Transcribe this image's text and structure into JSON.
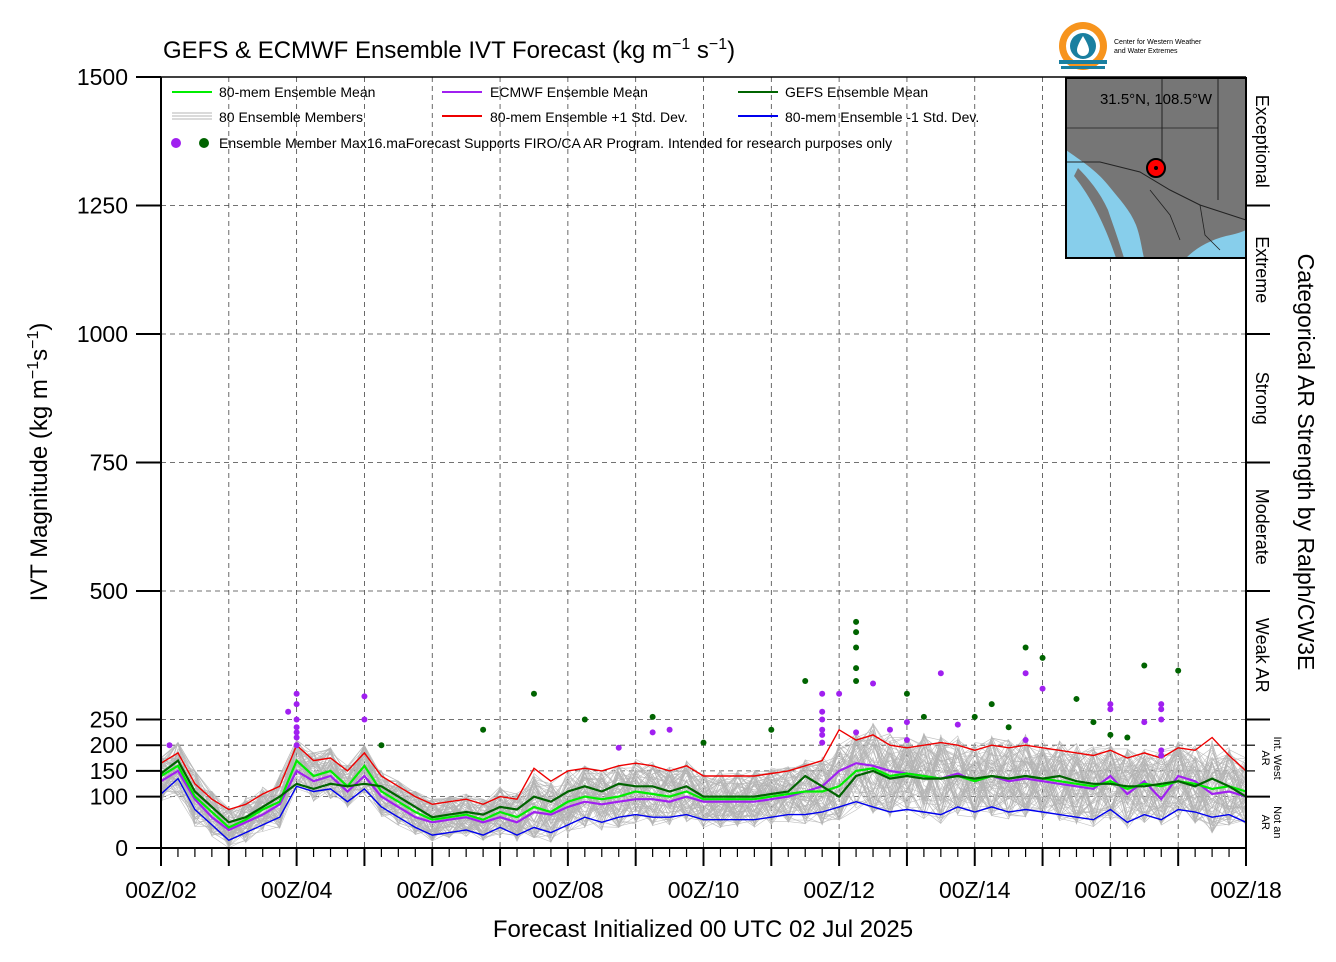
{
  "title_main": "GEFS & ECMWF Ensemble IVT Forecast (kg m",
  "title_exp1": "−1",
  "title_mid": " s",
  "title_exp2": "−1",
  "title_end": ")",
  "logo": {
    "line1": "Center for Western Weather",
    "line2": "and Water Extremes"
  },
  "inset": {
    "location": "31.5°N, 108.5°W"
  },
  "notice": "Forecast Supports FIRO/CA AR Program. Intended for research purposes only",
  "chart_data": {
    "type": "line",
    "xlabel": "Forecast Initialized 00 UTC 02 Jul 2025",
    "ylabel_main": "IVT Magnitude (kg m",
    "ylabel_exp1": "−1",
    "ylabel_mid": "s",
    "ylabel_exp2": "−1",
    "ylabel_end": ")",
    "right_label": "Categorical AR Strength by Ralph/CW3E",
    "xlim": [
      0,
      384
    ],
    "ylim": [
      0,
      1500
    ],
    "x_unit": "forecast hour",
    "x_ticks": [
      {
        "hour": 0,
        "label": "00Z/02"
      },
      {
        "hour": 48,
        "label": "00Z/04"
      },
      {
        "hour": 96,
        "label": "00Z/06"
      },
      {
        "hour": 144,
        "label": "00Z/08"
      },
      {
        "hour": 192,
        "label": "00Z/10"
      },
      {
        "hour": 240,
        "label": "00Z/12"
      },
      {
        "hour": 288,
        "label": "00Z/14"
      },
      {
        "hour": 336,
        "label": "00Z/16"
      },
      {
        "hour": 384,
        "label": "00Z/18"
      }
    ],
    "y_ticks": [
      0,
      100,
      150,
      200,
      250,
      500,
      750,
      1000,
      1250,
      1500
    ],
    "categories": [
      {
        "label": "Not an AR",
        "from": 0,
        "to": 100
      },
      {
        "label": "Int. West AR",
        "from": 100,
        "to": 250
      },
      {
        "label": "Weak AR",
        "from": 250,
        "to": 500
      },
      {
        "label": "Moderate",
        "from": 500,
        "to": 750
      },
      {
        "label": "Strong",
        "from": 750,
        "to": 1000
      },
      {
        "label": "Extreme",
        "from": 1000,
        "to": 1250
      },
      {
        "label": "Exceptional",
        "from": 1250,
        "to": 1500
      }
    ],
    "grid": true,
    "legend_position": "top-left",
    "legend": {
      "mean": "80-mem Ensemble Mean",
      "members": "80 Ensemble Members",
      "max": "Ensemble Member Max16.ma",
      "ecmwf": "ECMWF Ensemble Mean",
      "plus": "80-mem Ensemble +1 Std. Dev.",
      "gefs": "GEFS Ensemble Mean",
      "minus": "80-mem Ensemble -1 Std. Dev."
    },
    "colors": {
      "mean": "#00ee00",
      "ecmwf": "#a020f0",
      "gefs": "#006400",
      "plus": "#ee0000",
      "minus": "#0000ee",
      "members": "#b4b4b4",
      "ecmwf_max": "#a020f0",
      "gefs_max": "#006400"
    },
    "x": [
      0,
      6,
      12,
      18,
      24,
      30,
      36,
      42,
      48,
      54,
      60,
      66,
      72,
      78,
      84,
      90,
      96,
      102,
      108,
      114,
      120,
      126,
      132,
      138,
      144,
      150,
      156,
      162,
      168,
      174,
      180,
      186,
      192,
      198,
      204,
      210,
      216,
      222,
      228,
      234,
      240,
      246,
      252,
      258,
      264,
      270,
      276,
      282,
      288,
      294,
      300,
      306,
      312,
      318,
      324,
      330,
      336,
      342,
      348,
      354,
      360,
      366,
      372,
      378,
      384
    ],
    "series": [
      {
        "name": "80-mem Ensemble Mean",
        "key": "mean",
        "values": [
          140,
          160,
          100,
          70,
          40,
          55,
          75,
          90,
          170,
          140,
          150,
          120,
          160,
          110,
          90,
          70,
          55,
          60,
          65,
          55,
          70,
          60,
          80,
          70,
          90,
          100,
          95,
          100,
          110,
          105,
          100,
          110,
          95,
          95,
          95,
          95,
          100,
          105,
          110,
          110,
          120,
          150,
          155,
          140,
          145,
          140,
          135,
          140,
          130,
          140,
          135,
          140,
          135,
          130,
          125,
          120,
          130,
          115,
          125,
          120,
          130,
          125,
          115,
          120,
          110
        ]
      },
      {
        "name": "ECMWF Ensemble Mean",
        "key": "ecmwf",
        "values": [
          130,
          150,
          95,
          60,
          35,
          50,
          65,
          85,
          150,
          130,
          140,
          110,
          140,
          100,
          80,
          60,
          50,
          55,
          60,
          50,
          60,
          50,
          70,
          65,
          80,
          90,
          85,
          90,
          95,
          95,
          90,
          100,
          90,
          90,
          90,
          90,
          95,
          100,
          110,
          120,
          150,
          165,
          160,
          150,
          145,
          140,
          135,
          145,
          130,
          140,
          130,
          135,
          130,
          125,
          120,
          115,
          140,
          105,
          130,
          95,
          140,
          130,
          105,
          110,
          100
        ]
      },
      {
        "name": "GEFS Ensemble Mean",
        "key": "gefs",
        "values": [
          145,
          170,
          110,
          80,
          50,
          60,
          80,
          100,
          125,
          115,
          125,
          120,
          125,
          120,
          100,
          80,
          60,
          65,
          70,
          65,
          80,
          75,
          100,
          90,
          110,
          120,
          110,
          125,
          120,
          120,
          110,
          120,
          100,
          100,
          100,
          100,
          105,
          110,
          140,
          120,
          100,
          140,
          150,
          135,
          140,
          135,
          135,
          140,
          135,
          140,
          135,
          140,
          135,
          140,
          130,
          125,
          125,
          120,
          120,
          125,
          130,
          120,
          135,
          120,
          100
        ]
      },
      {
        "name": "80-mem Ensemble +1 Std. Dev.",
        "key": "plus",
        "values": [
          165,
          185,
          125,
          95,
          75,
          85,
          105,
          120,
          200,
          170,
          175,
          150,
          185,
          140,
          120,
          100,
          85,
          90,
          95,
          85,
          100,
          95,
          155,
          130,
          150,
          155,
          150,
          160,
          165,
          160,
          150,
          160,
          140,
          140,
          140,
          140,
          145,
          150,
          160,
          170,
          230,
          210,
          220,
          200,
          195,
          200,
          205,
          200,
          190,
          200,
          195,
          200,
          195,
          190,
          185,
          180,
          190,
          175,
          185,
          175,
          195,
          190,
          215,
          180,
          150
        ]
      },
      {
        "name": "80-mem Ensemble -1 Std. Dev.",
        "key": "minus",
        "values": [
          105,
          135,
          75,
          45,
          15,
          30,
          45,
          60,
          120,
          110,
          115,
          90,
          115,
          80,
          60,
          40,
          25,
          30,
          35,
          25,
          40,
          25,
          40,
          30,
          45,
          60,
          50,
          60,
          65,
          60,
          60,
          65,
          55,
          55,
          55,
          55,
          60,
          65,
          65,
          70,
          80,
          90,
          80,
          70,
          75,
          70,
          65,
          80,
          70,
          80,
          70,
          75,
          70,
          65,
          60,
          55,
          75,
          50,
          65,
          55,
          75,
          70,
          60,
          65,
          50
        ]
      }
    ],
    "members_count": 80,
    "members_band_approx": [
      [
        55,
        175
      ],
      [
        70,
        205
      ],
      [
        20,
        150
      ],
      [
        5,
        110
      ],
      [
        0,
        90
      ],
      [
        10,
        110
      ],
      [
        20,
        120
      ],
      [
        30,
        145
      ],
      [
        80,
        210
      ],
      [
        70,
        185
      ],
      [
        75,
        195
      ],
      [
        55,
        160
      ],
      [
        75,
        200
      ],
      [
        40,
        150
      ],
      [
        25,
        130
      ],
      [
        10,
        110
      ],
      [
        0,
        95
      ],
      [
        5,
        100
      ],
      [
        10,
        105
      ],
      [
        0,
        95
      ],
      [
        10,
        120
      ],
      [
        5,
        110
      ],
      [
        20,
        165
      ],
      [
        10,
        145
      ],
      [
        25,
        165
      ],
      [
        40,
        175
      ],
      [
        30,
        165
      ],
      [
        40,
        180
      ],
      [
        45,
        185
      ],
      [
        40,
        180
      ],
      [
        40,
        170
      ],
      [
        45,
        180
      ],
      [
        35,
        160
      ],
      [
        35,
        160
      ],
      [
        35,
        160
      ],
      [
        35,
        160
      ],
      [
        40,
        165
      ],
      [
        45,
        170
      ],
      [
        40,
        180
      ],
      [
        45,
        195
      ],
      [
        55,
        250
      ],
      [
        60,
        235
      ],
      [
        50,
        245
      ],
      [
        40,
        225
      ],
      [
        45,
        215
      ],
      [
        40,
        225
      ],
      [
        35,
        230
      ],
      [
        50,
        225
      ],
      [
        40,
        210
      ],
      [
        50,
        225
      ],
      [
        40,
        215
      ],
      [
        45,
        225
      ],
      [
        40,
        215
      ],
      [
        35,
        210
      ],
      [
        30,
        205
      ],
      [
        25,
        200
      ],
      [
        45,
        215
      ],
      [
        20,
        195
      ],
      [
        35,
        205
      ],
      [
        25,
        195
      ],
      [
        45,
        220
      ],
      [
        40,
        215
      ],
      [
        30,
        240
      ],
      [
        35,
        205
      ],
      [
        20,
        175
      ]
    ],
    "ecmwf_max_points": [
      [
        3,
        200
      ],
      [
        45,
        265
      ],
      [
        48,
        300
      ],
      [
        48,
        280
      ],
      [
        48,
        250
      ],
      [
        48,
        235
      ],
      [
        48,
        225
      ],
      [
        48,
        215
      ],
      [
        48,
        200
      ],
      [
        72,
        295
      ],
      [
        72,
        250
      ],
      [
        162,
        195
      ],
      [
        174,
        225
      ],
      [
        180,
        230
      ],
      [
        234,
        300
      ],
      [
        234,
        265
      ],
      [
        234,
        250
      ],
      [
        234,
        230
      ],
      [
        234,
        220
      ],
      [
        234,
        205
      ],
      [
        240,
        300
      ],
      [
        246,
        225
      ],
      [
        252,
        320
      ],
      [
        258,
        230
      ],
      [
        264,
        245
      ],
      [
        264,
        210
      ],
      [
        276,
        340
      ],
      [
        282,
        240
      ],
      [
        306,
        210
      ],
      [
        306,
        340
      ],
      [
        312,
        310
      ],
      [
        336,
        280
      ],
      [
        336,
        270
      ],
      [
        348,
        245
      ],
      [
        354,
        280
      ],
      [
        354,
        270
      ],
      [
        354,
        250
      ],
      [
        354,
        190
      ],
      [
        354,
        180
      ]
    ],
    "gefs_max_points": [
      [
        78,
        200
      ],
      [
        114,
        230
      ],
      [
        132,
        300
      ],
      [
        150,
        250
      ],
      [
        174,
        255
      ],
      [
        192,
        205
      ],
      [
        216,
        230
      ],
      [
        228,
        325
      ],
      [
        246,
        440
      ],
      [
        246,
        420
      ],
      [
        246,
        390
      ],
      [
        246,
        350
      ],
      [
        246,
        325
      ],
      [
        264,
        300
      ],
      [
        270,
        255
      ],
      [
        288,
        255
      ],
      [
        294,
        280
      ],
      [
        300,
        235
      ],
      [
        306,
        390
      ],
      [
        312,
        370
      ],
      [
        324,
        290
      ],
      [
        330,
        245
      ],
      [
        336,
        220
      ],
      [
        342,
        215
      ],
      [
        348,
        355
      ],
      [
        360,
        345
      ]
    ]
  }
}
